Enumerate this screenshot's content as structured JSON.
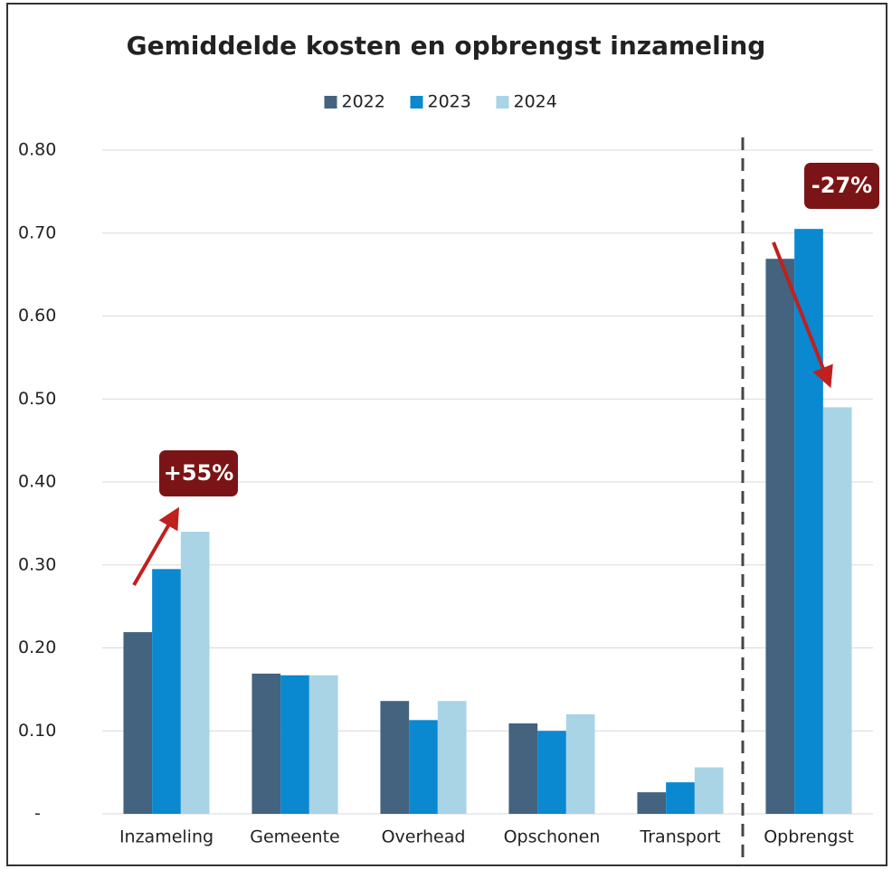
{
  "chart_data": {
    "type": "bar",
    "title": "Gemiddelde kosten en opbrengst inzameling",
    "categories": [
      "Inzameling",
      "Gemeente",
      "Overhead",
      "Opschonen",
      "Transport",
      "Opbrengst"
    ],
    "series": [
      {
        "name": "2022",
        "color": "#43637f",
        "values": [
          0.219,
          0.169,
          0.136,
          0.109,
          0.026,
          0.669
        ]
      },
      {
        "name": "2023",
        "color": "#0a88d0",
        "values": [
          0.295,
          0.167,
          0.113,
          0.1,
          0.038,
          0.705
        ]
      },
      {
        "name": "2024",
        "color": "#a8d4e6",
        "values": [
          0.34,
          0.167,
          0.136,
          0.12,
          0.056,
          0.49
        ]
      }
    ],
    "ylim": [
      0,
      0.8
    ],
    "yticks": [
      {
        "value": 0,
        "label": "-"
      },
      {
        "value": 0.1,
        "label": "0.10"
      },
      {
        "value": 0.2,
        "label": "0.20"
      },
      {
        "value": 0.3,
        "label": "0.30"
      },
      {
        "value": 0.4,
        "label": "0.40"
      },
      {
        "value": 0.5,
        "label": "0.50"
      },
      {
        "value": 0.6,
        "label": "0.60"
      },
      {
        "value": 0.7,
        "label": "0.70"
      },
      {
        "value": 0.8,
        "label": "0.80"
      }
    ],
    "grid": true,
    "legend": "top",
    "annotations": [
      "+55%",
      "-27%"
    ]
  }
}
